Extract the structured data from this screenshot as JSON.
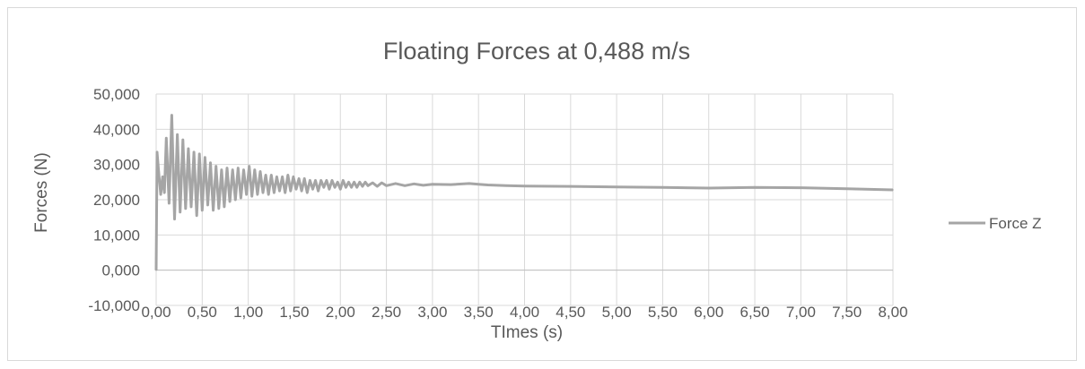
{
  "chart_data": {
    "type": "line",
    "title": "Floating Forces at 0,488 m/s",
    "xlabel": "TImes (s)",
    "ylabel": "Forces (N)",
    "xlim": [
      0,
      8
    ],
    "ylim": [
      -10,
      50
    ],
    "grid": true,
    "legend_position": "right",
    "x_tick_labels": [
      "0,00",
      "0,50",
      "1,00",
      "1,50",
      "2,00",
      "2,50",
      "3,00",
      "3,50",
      "4,00",
      "4,50",
      "5,00",
      "5,50",
      "6,00",
      "6,50",
      "7,00",
      "7,50",
      "8,00"
    ],
    "y_tick_labels": [
      "-10,000",
      "0,000",
      "10,000",
      "20,000",
      "30,000",
      "40,000",
      "50,000"
    ],
    "series": [
      {
        "name": "Force Z",
        "color": "#a5a5a5",
        "x": [
          0.0,
          0.01,
          0.03,
          0.05,
          0.07,
          0.09,
          0.11,
          0.14,
          0.17,
          0.2,
          0.23,
          0.26,
          0.29,
          0.32,
          0.35,
          0.38,
          0.41,
          0.44,
          0.47,
          0.5,
          0.53,
          0.56,
          0.59,
          0.62,
          0.65,
          0.68,
          0.71,
          0.74,
          0.77,
          0.8,
          0.83,
          0.86,
          0.89,
          0.92,
          0.95,
          0.98,
          1.01,
          1.04,
          1.07,
          1.1,
          1.13,
          1.16,
          1.19,
          1.22,
          1.25,
          1.28,
          1.31,
          1.34,
          1.37,
          1.4,
          1.43,
          1.46,
          1.49,
          1.52,
          1.55,
          1.58,
          1.61,
          1.64,
          1.67,
          1.7,
          1.73,
          1.76,
          1.79,
          1.82,
          1.85,
          1.88,
          1.91,
          1.94,
          1.97,
          2.0,
          2.03,
          2.06,
          2.09,
          2.12,
          2.15,
          2.18,
          2.21,
          2.24,
          2.27,
          2.3,
          2.35,
          2.4,
          2.45,
          2.5,
          2.6,
          2.7,
          2.8,
          2.9,
          3.0,
          3.2,
          3.4,
          3.5,
          3.6,
          3.8,
          4.0,
          4.5,
          5.0,
          5.5,
          6.0,
          6.5,
          7.0,
          7.5,
          8.0
        ],
        "values": [
          0.0,
          33.5,
          27.0,
          21.5,
          26.5,
          22.0,
          37.5,
          19.0,
          44.0,
          14.5,
          38.5,
          16.5,
          37.0,
          17.5,
          34.5,
          18.0,
          33.5,
          15.5,
          33.0,
          17.0,
          32.0,
          18.5,
          30.5,
          17.0,
          29.5,
          17.5,
          28.5,
          18.0,
          29.0,
          19.5,
          28.5,
          20.0,
          29.0,
          20.5,
          28.5,
          21.5,
          29.5,
          21.0,
          28.5,
          21.5,
          28.0,
          22.0,
          27.0,
          21.5,
          27.0,
          22.0,
          26.5,
          22.5,
          26.5,
          22.0,
          27.0,
          22.5,
          26.5,
          23.0,
          26.0,
          22.5,
          26.0,
          22.0,
          25.5,
          23.0,
          25.5,
          22.5,
          25.5,
          23.5,
          25.5,
          23.0,
          25.5,
          23.5,
          25.0,
          23.0,
          25.5,
          23.5,
          25.0,
          23.5,
          25.0,
          23.5,
          25.0,
          23.8,
          25.0,
          24.0,
          24.8,
          23.8,
          24.8,
          24.0,
          24.6,
          24.0,
          24.5,
          24.1,
          24.4,
          24.3,
          24.6,
          24.4,
          24.2,
          24.0,
          23.9,
          23.8,
          23.6,
          23.5,
          23.3,
          23.5,
          23.4,
          23.1,
          22.8
        ]
      }
    ]
  }
}
